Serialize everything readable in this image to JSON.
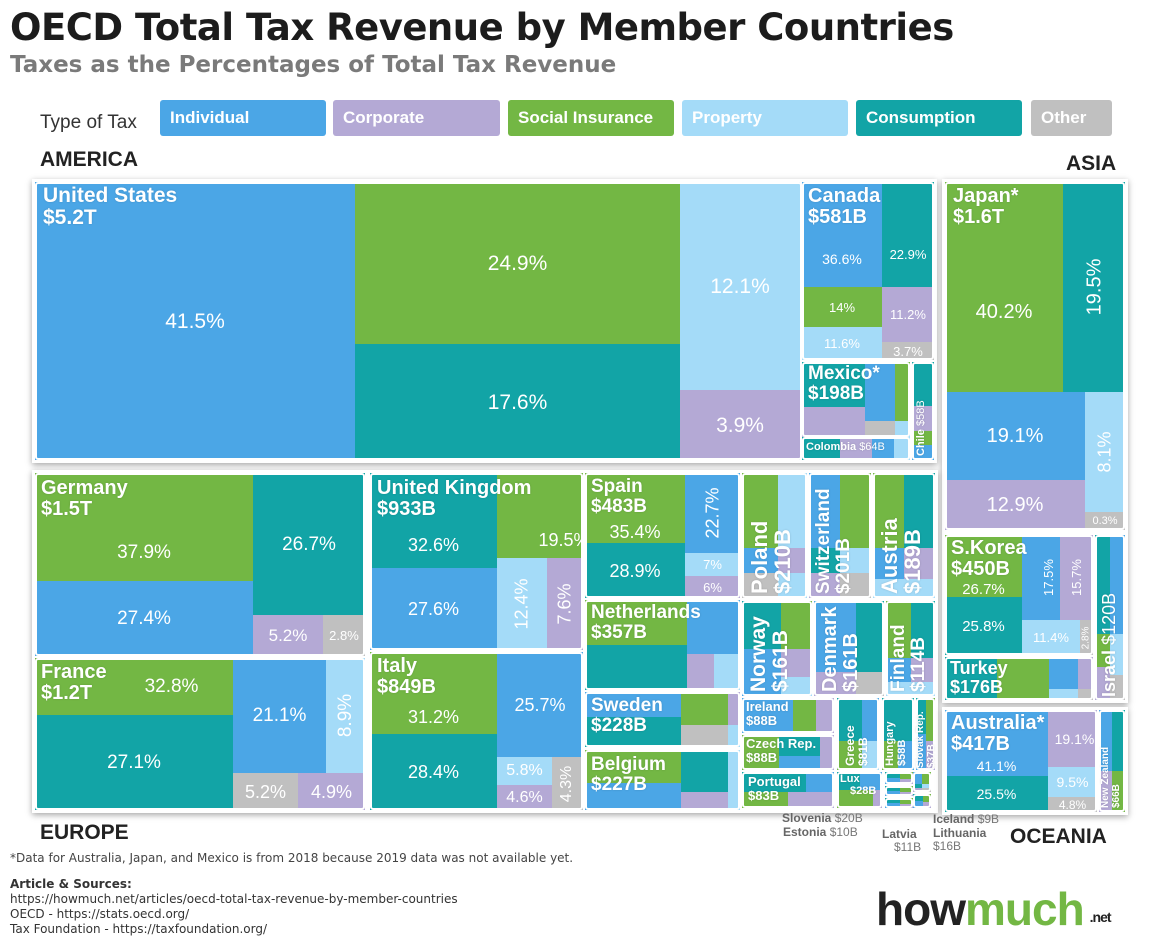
{
  "header": {
    "title": "OECD Total Tax Revenue by Member Countries",
    "subtitle": "Taxes as the Percentages of Total Tax Revenue"
  },
  "chart_data": {
    "type": "treemap",
    "title": "OECD Total Tax Revenue by Member Countries",
    "subtitle": "Taxes as the Percentages of Total Tax Revenue",
    "legend": {
      "label": "Type of Tax",
      "placement": "top",
      "items": [
        {
          "name": "Individual",
          "color": "#4ba6e6"
        },
        {
          "name": "Corporate",
          "color": "#b4a9d5"
        },
        {
          "name": "Social Insurance",
          "color": "#73b744"
        },
        {
          "name": "Property",
          "color": "#a4dbf8"
        },
        {
          "name": "Consumption",
          "color": "#12a4a6"
        },
        {
          "name": "Other",
          "color": "#c0c0c0"
        }
      ]
    },
    "regions": [
      "AMERICA",
      "ASIA",
      "EUROPE",
      "OCEANIA"
    ],
    "countries": [
      {
        "name": "United States",
        "total": "$5.2T",
        "region": "AMERICA",
        "shares": [
          {
            "type": "Individual",
            "pct": "41.5%"
          },
          {
            "type": "Social Insurance",
            "pct": "24.9%"
          },
          {
            "type": "Consumption",
            "pct": "17.6%"
          },
          {
            "type": "Property",
            "pct": "12.1%"
          },
          {
            "type": "Corporate",
            "pct": "3.9%"
          }
        ]
      },
      {
        "name": "Canada",
        "total": "$581B",
        "region": "AMERICA",
        "shares": [
          {
            "type": "Individual",
            "pct": "36.6%"
          },
          {
            "type": "Consumption",
            "pct": "22.9%"
          },
          {
            "type": "Social Insurance",
            "pct": "14%"
          },
          {
            "type": "Corporate",
            "pct": "11.2%"
          },
          {
            "type": "Property",
            "pct": "11.6%"
          },
          {
            "type": "Other",
            "pct": "3.7%"
          }
        ]
      },
      {
        "name": "Mexico*",
        "total": "$198B",
        "region": "AMERICA",
        "shares": []
      },
      {
        "name": "Colombia",
        "total": "$64B",
        "region": "AMERICA",
        "shares": []
      },
      {
        "name": "Chile",
        "total": "$58B",
        "region": "AMERICA",
        "shares": []
      },
      {
        "name": "Japan*",
        "total": "$1.6T",
        "region": "ASIA",
        "shares": [
          {
            "type": "Social Insurance",
            "pct": "40.2%"
          },
          {
            "type": "Consumption",
            "pct": "19.5%"
          },
          {
            "type": "Individual",
            "pct": "19.1%"
          },
          {
            "type": "Property",
            "pct": "8.1%"
          },
          {
            "type": "Corporate",
            "pct": "12.9%"
          },
          {
            "type": "Other",
            "pct": "0.3%"
          }
        ]
      },
      {
        "name": "S.Korea",
        "total": "$450B",
        "region": "ASIA",
        "shares": [
          {
            "type": "Social Insurance",
            "pct": "26.7%"
          },
          {
            "type": "Individual",
            "pct": "17.5%"
          },
          {
            "type": "Corporate",
            "pct": "15.7%"
          },
          {
            "type": "Consumption",
            "pct": "25.8%"
          },
          {
            "type": "Property",
            "pct": "11.4%"
          },
          {
            "type": "Other",
            "pct": "2.8%"
          }
        ]
      },
      {
        "name": "Turkey",
        "total": "$176B",
        "region": "ASIA",
        "shares": []
      },
      {
        "name": "Israel",
        "total": "$120B",
        "region": "ASIA",
        "shares": []
      },
      {
        "name": "Australia*",
        "total": "$417B",
        "region": "OCEANIA",
        "shares": [
          {
            "type": "Individual",
            "pct": "41.1%"
          },
          {
            "type": "Corporate",
            "pct": "19.1%"
          },
          {
            "type": "Consumption",
            "pct": "25.5%"
          },
          {
            "type": "Property",
            "pct": "9.5%"
          },
          {
            "type": "Other",
            "pct": "4.8%"
          }
        ]
      },
      {
        "name": "New Zealand",
        "total": "$66B",
        "region": "OCEANIA",
        "shares": []
      },
      {
        "name": "Germany",
        "total": "$1.5T",
        "region": "EUROPE",
        "shares": [
          {
            "type": "Social Insurance",
            "pct": "37.9%"
          },
          {
            "type": "Consumption",
            "pct": "26.7%"
          },
          {
            "type": "Individual",
            "pct": "27.4%"
          },
          {
            "type": "Corporate",
            "pct": "5.2%"
          },
          {
            "type": "Other",
            "pct": "2.8%"
          }
        ]
      },
      {
        "name": "France",
        "total": "$1.2T",
        "region": "EUROPE",
        "shares": [
          {
            "type": "Social Insurance",
            "pct": "32.8%"
          },
          {
            "type": "Individual",
            "pct": "21.1%"
          },
          {
            "type": "Property",
            "pct": "8.9%"
          },
          {
            "type": "Consumption",
            "pct": "27.1%"
          },
          {
            "type": "Other",
            "pct": "5.2%"
          },
          {
            "type": "Corporate",
            "pct": "4.9%"
          }
        ]
      },
      {
        "name": "United Kingdom",
        "total": "$933B",
        "region": "EUROPE",
        "shares": [
          {
            "type": "Consumption",
            "pct": "32.6%"
          },
          {
            "type": "Social Insurance",
            "pct": "19.5%"
          },
          {
            "type": "Individual",
            "pct": "27.6%"
          },
          {
            "type": "Property",
            "pct": "12.4%"
          },
          {
            "type": "Corporate",
            "pct": "7.6%"
          }
        ]
      },
      {
        "name": "Italy",
        "total": "$849B",
        "region": "EUROPE",
        "shares": [
          {
            "type": "Social Insurance",
            "pct": "31.2%"
          },
          {
            "type": "Individual",
            "pct": "25.7%"
          },
          {
            "type": "Consumption",
            "pct": "28.4%"
          },
          {
            "type": "Property",
            "pct": "5.8%"
          },
          {
            "type": "Corporate",
            "pct": "4.6%"
          },
          {
            "type": "Other",
            "pct": "4.3%"
          }
        ]
      },
      {
        "name": "Spain",
        "total": "$483B",
        "region": "EUROPE",
        "shares": [
          {
            "type": "Social Insurance",
            "pct": "35.4%"
          },
          {
            "type": "Individual",
            "pct": "22.7%"
          },
          {
            "type": "Consumption",
            "pct": "28.9%"
          },
          {
            "type": "Property",
            "pct": "7%"
          },
          {
            "type": "Corporate",
            "pct": "6%"
          }
        ]
      },
      {
        "name": "Netherlands",
        "total": "$357B",
        "region": "EUROPE",
        "shares": []
      },
      {
        "name": "Sweden",
        "total": "$228B",
        "region": "EUROPE",
        "shares": []
      },
      {
        "name": "Belgium",
        "total": "$227B",
        "region": "EUROPE",
        "shares": []
      },
      {
        "name": "Poland",
        "total": "$210B",
        "region": "EUROPE",
        "shares": []
      },
      {
        "name": "Switzerland",
        "total": "$201B",
        "region": "EUROPE",
        "shares": []
      },
      {
        "name": "Austria",
        "total": "$189B",
        "region": "EUROPE",
        "shares": []
      },
      {
        "name": "Norway",
        "total": "$161B",
        "region": "EUROPE",
        "shares": []
      },
      {
        "name": "Denmark",
        "total": "$161B",
        "region": "EUROPE",
        "shares": []
      },
      {
        "name": "Finland",
        "total": "$114B",
        "region": "EUROPE",
        "shares": []
      },
      {
        "name": "Ireland",
        "total": "$88B",
        "region": "EUROPE",
        "shares": []
      },
      {
        "name": "Czech Rep.",
        "total": "$88B",
        "region": "EUROPE",
        "shares": []
      },
      {
        "name": "Greece",
        "total": "$81B",
        "region": "EUROPE",
        "shares": []
      },
      {
        "name": "Hungary",
        "total": "$58B",
        "region": "EUROPE",
        "shares": []
      },
      {
        "name": "Slovak Rep.",
        "total": "$37B",
        "region": "EUROPE",
        "shares": []
      },
      {
        "name": "Portugal",
        "total": "$83B",
        "region": "EUROPE",
        "shares": []
      },
      {
        "name": "Lux",
        "total": "$28B",
        "region": "EUROPE",
        "shares": []
      },
      {
        "name": "Slovenia",
        "total": "$20B",
        "region": "EUROPE",
        "shares": []
      },
      {
        "name": "Estonia",
        "total": "$10B",
        "region": "EUROPE",
        "shares": []
      },
      {
        "name": "Latvia",
        "total": "$11B",
        "region": "EUROPE",
        "shares": []
      },
      {
        "name": "Lithuania",
        "total": "$16B",
        "region": "EUROPE",
        "shares": []
      },
      {
        "name": "Iceland",
        "total": "$9B",
        "region": "EUROPE",
        "shares": []
      }
    ]
  },
  "footer": {
    "note": "*Data for Australia, Japan, and Mexico is from 2018 because 2019 data was not available yet.",
    "sources_title": "Article & Sources:",
    "sources": [
      "https://howmuch.net/articles/oecd-total-tax-revenue-by-member-countries",
      "OECD - https://stats.oecd.org/",
      "Tax Foundation - https://taxfoundation.org/"
    ]
  },
  "logo": {
    "how": "how",
    "much": "much",
    "net": ".net"
  }
}
